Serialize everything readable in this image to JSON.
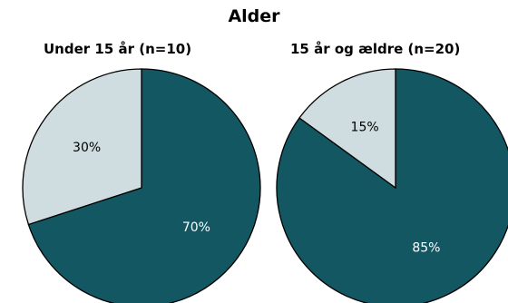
{
  "title": "Alder",
  "colors": {
    "dark": "#135763",
    "light": "#cfdde0",
    "edge": "#000000"
  },
  "chart_data": [
    {
      "type": "pie",
      "title": "Under 15 år (n=10)",
      "slices": [
        {
          "label": "70%",
          "value": 70,
          "color": "#135763",
          "label_color": "#ffffff"
        },
        {
          "label": "30%",
          "value": 30,
          "color": "#cfdde0",
          "label_color": "#000000"
        }
      ]
    },
    {
      "type": "pie",
      "title": "15 år og ældre (n=20)",
      "slices": [
        {
          "label": "85%",
          "value": 85,
          "color": "#135763",
          "label_color": "#ffffff"
        },
        {
          "label": "15%",
          "value": 15,
          "color": "#cfdde0",
          "label_color": "#000000"
        }
      ]
    }
  ]
}
